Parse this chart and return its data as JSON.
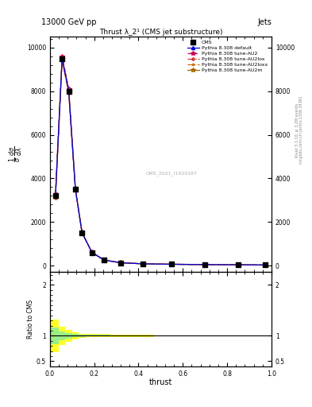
{
  "title_top": "13000 GeV pp",
  "title_right": "Jets",
  "plot_title": "Thrust λ_2¹ (CMS jet substructure)",
  "watermark": "CMS_2021_I1920187",
  "right_label1": "Rivet 3.1.10, ≥ 3.2M events",
  "right_label2": "mcplots.cern.ch [arXiv:1306.3436]",
  "xlabel": "thrust",
  "ratio_ylabel": "Ratio to CMS",
  "color_default": "#0000dd",
  "color_AU2": "#cc0055",
  "color_AU2lox": "#cc3333",
  "color_AU2loxx": "#cc6600",
  "color_AU2m": "#aa6600",
  "x_pts": [
    0.025,
    0.055,
    0.085,
    0.115,
    0.145,
    0.19,
    0.245,
    0.32,
    0.42,
    0.55,
    0.7,
    0.85,
    0.97
  ],
  "y_default": [
    3200,
    9500,
    8000,
    3500,
    1500,
    600,
    250,
    130,
    80,
    60,
    45,
    35,
    25
  ],
  "y_AU2": [
    3300,
    9600,
    8100,
    3550,
    1520,
    610,
    255,
    132,
    82,
    62,
    47,
    36,
    26
  ],
  "y_AU2lox": [
    3100,
    9400,
    7900,
    3480,
    1490,
    595,
    248,
    129,
    79,
    59,
    44,
    34,
    24
  ],
  "y_AU2loxx": [
    3250,
    9550,
    8050,
    3520,
    1510,
    605,
    252,
    131,
    81,
    61,
    46,
    35,
    25
  ],
  "y_AU2m": [
    3150,
    9480,
    7980,
    3510,
    1505,
    602,
    250,
    130,
    80,
    60,
    45,
    35,
    25
  ],
  "cms_x": [
    0.025,
    0.055,
    0.085,
    0.115,
    0.145,
    0.19,
    0.245,
    0.32,
    0.42,
    0.55,
    0.7,
    0.85,
    0.97
  ],
  "cms_y": [
    3200,
    9500,
    8000,
    3500,
    1500,
    600,
    250,
    130,
    80,
    60,
    45,
    35,
    25
  ],
  "ylim_main": [
    -300,
    10500
  ],
  "yticks_main": [
    0,
    2000,
    4000,
    6000,
    8000,
    10000
  ],
  "xlim": [
    0.0,
    1.0
  ],
  "ratio_ylim": [
    0.4,
    2.25
  ],
  "ratio_yticks": [
    0.5,
    1.0,
    2.0
  ],
  "bin_edges": [
    0.0,
    0.04,
    0.07,
    0.1,
    0.13,
    0.16,
    0.22,
    0.27,
    0.37,
    0.47,
    0.625,
    0.775,
    0.925,
    1.0
  ],
  "ratio_yellow_lo": [
    0.68,
    0.82,
    0.88,
    0.93,
    0.96,
    0.97,
    0.97,
    0.98,
    0.98,
    0.99,
    0.99,
    0.99,
    0.99
  ],
  "ratio_yellow_hi": [
    1.32,
    1.18,
    1.12,
    1.07,
    1.04,
    1.03,
    1.03,
    1.02,
    1.02,
    1.01,
    1.01,
    1.01,
    1.01
  ],
  "ratio_green_lo": [
    0.84,
    0.91,
    0.94,
    0.97,
    0.98,
    0.985,
    0.985,
    0.99,
    0.99,
    0.995,
    0.995,
    0.995,
    0.995
  ],
  "ratio_green_hi": [
    1.16,
    1.09,
    1.06,
    1.03,
    1.02,
    1.015,
    1.015,
    1.01,
    1.01,
    1.005,
    1.005,
    1.005,
    1.005
  ]
}
